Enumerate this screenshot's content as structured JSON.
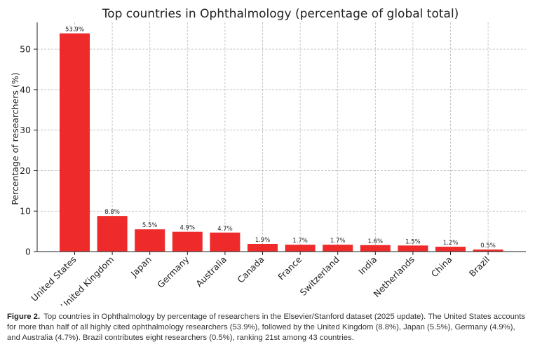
{
  "chart_data": {
    "type": "bar",
    "title": "Top countries in Ophthalmology (percentage of global total)",
    "xlabel": "",
    "ylabel": "Percentage of researchers (%)",
    "categories": [
      "United States",
      "United Kingdom",
      "Japan",
      "Germany",
      "Australia",
      "Canada",
      "France",
      "Switzerland",
      "India",
      "Netherlands",
      "China",
      "Brazil"
    ],
    "values": [
      53.9,
      8.8,
      5.5,
      4.9,
      4.7,
      1.9,
      1.7,
      1.7,
      1.6,
      1.5,
      1.2,
      0.5
    ],
    "value_labels": [
      "53.9%",
      "8.8%",
      "5.5%",
      "4.9%",
      "4.7%",
      "1.9%",
      "1.7%",
      "1.7%",
      "1.6%",
      "1.5%",
      "1.2%",
      "0.5%"
    ],
    "yticks": [
      0,
      10,
      20,
      30,
      40,
      50
    ],
    "ylim": [
      0,
      56.6
    ],
    "grid": true,
    "bar_color": "#ee2a2a"
  },
  "caption": {
    "label": "Figure 2.",
    "text": "Top countries in Ophthalmology by percentage of researchers in the Elsevier/Stanford dataset (2025 update). The United States accounts for more than half of all highly cited ophthalmology researchers (53.9%), followed by the United Kingdom (8.8%), Japan (5.5%), Germany (4.9%), and Australia (4.7%). Brazil contributes eight researchers (0.5%), ranking 21st among 43 countries."
  }
}
